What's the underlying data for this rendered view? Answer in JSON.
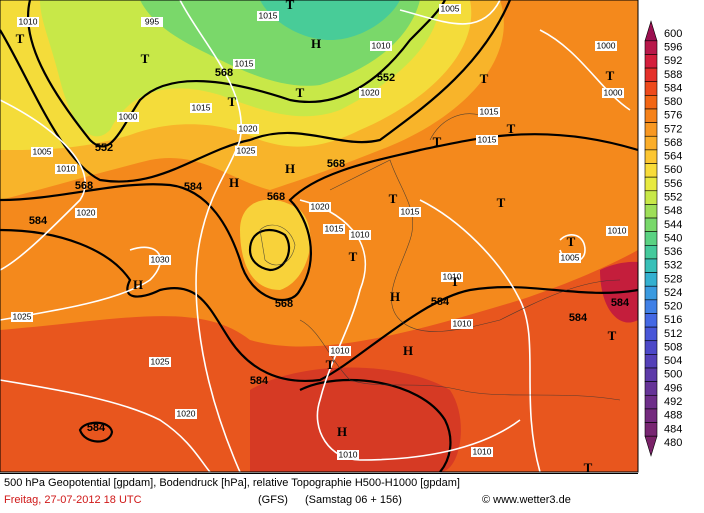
{
  "map": {
    "height_labels": [
      552,
      552,
      568,
      568,
      584,
      584,
      568,
      568,
      568,
      584,
      584,
      584,
      584,
      584
    ],
    "isobar_labels": [
      1010,
      995,
      1015,
      1005,
      1010,
      1015,
      1020,
      1015,
      1000,
      1020,
      1025,
      1005,
      1010,
      1015,
      1015,
      1020,
      1020,
      1015,
      1010,
      1015,
      1030,
      1025,
      1025,
      1020,
      1010,
      1010,
      1010,
      1005,
      1010,
      1010,
      1010,
      1000,
      1000
    ],
    "pressure_centers": [
      "T",
      "T",
      "H",
      "T",
      "T",
      "T",
      "T",
      "T",
      "T",
      "H",
      "H",
      "T",
      "T",
      "T",
      "T",
      "T",
      "T",
      "H",
      "H",
      "H",
      "T",
      "T",
      "H",
      "T"
    ]
  },
  "colorbar": [
    {
      "value": 600,
      "color": "#9b1050"
    },
    {
      "value": 596,
      "color": "#b8184a"
    },
    {
      "value": 592,
      "color": "#d41e3c"
    },
    {
      "value": 588,
      "color": "#e4302a"
    },
    {
      "value": 584,
      "color": "#ee4a1c"
    },
    {
      "value": 580,
      "color": "#f36614"
    },
    {
      "value": 576,
      "color": "#f6821a"
    },
    {
      "value": 572,
      "color": "#f89822"
    },
    {
      "value": 568,
      "color": "#fbae2a"
    },
    {
      "value": 564,
      "color": "#fcc632"
    },
    {
      "value": 560,
      "color": "#f8dc3a"
    },
    {
      "value": 556,
      "color": "#e8ea40"
    },
    {
      "value": 552,
      "color": "#c8e848"
    },
    {
      "value": 548,
      "color": "#9edf58"
    },
    {
      "value": 544,
      "color": "#78d86a"
    },
    {
      "value": 540,
      "color": "#5ad282"
    },
    {
      "value": 536,
      "color": "#44ca9c"
    },
    {
      "value": 532,
      "color": "#38c0b8"
    },
    {
      "value": 528,
      "color": "#34b0d0"
    },
    {
      "value": 524,
      "color": "#3a9ae0"
    },
    {
      "value": 520,
      "color": "#4080e6"
    },
    {
      "value": 516,
      "color": "#4468e4"
    },
    {
      "value": 512,
      "color": "#4856d8"
    },
    {
      "value": 508,
      "color": "#4c48c8"
    },
    {
      "value": 504,
      "color": "#5440b8"
    },
    {
      "value": 500,
      "color": "#5c3aa8"
    },
    {
      "value": 496,
      "color": "#663498"
    },
    {
      "value": 492,
      "color": "#6e2e8a"
    },
    {
      "value": 488,
      "color": "#742a7e"
    },
    {
      "value": 484,
      "color": "#782672"
    },
    {
      "value": 480,
      "color": "#7a2268"
    }
  ],
  "footer": {
    "description": "500 hPa Geopotential [gpdam], Bodendruck [hPa], relative Topographie H500-H1000 [gpdam]",
    "date": "Freitag, 27-07-2012  18 UTC",
    "model": "(GFS)",
    "run": "(Samstag 06 + 156)",
    "source": "© www.wetter3.de"
  }
}
